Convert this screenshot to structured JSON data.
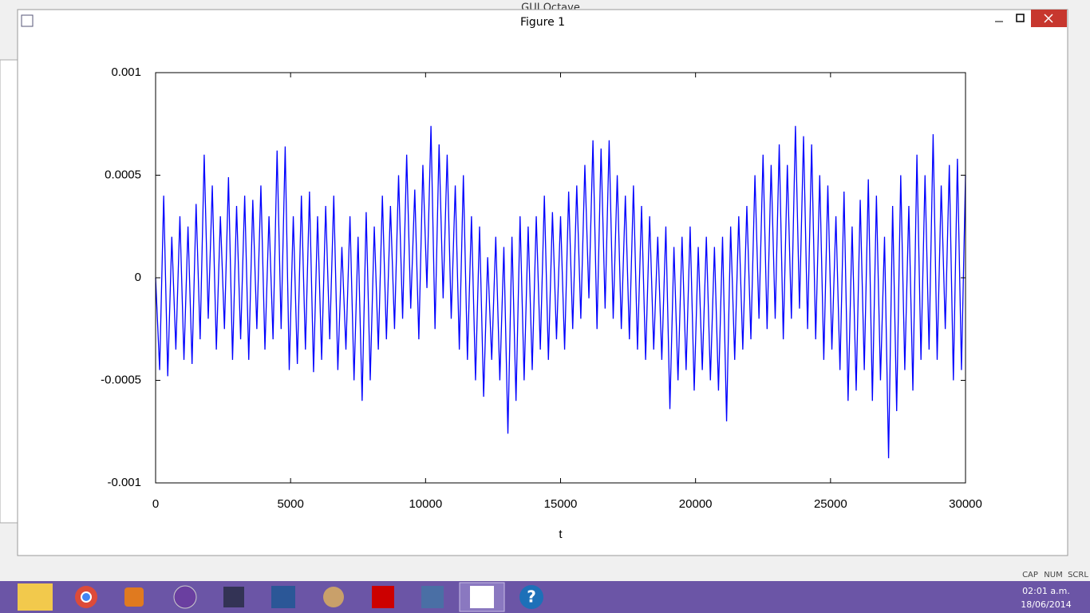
{
  "window": {
    "title": "Figure 1",
    "background_title": "GUI Octave"
  },
  "chart_data": {
    "type": "line",
    "xlabel": "t",
    "x": [
      0,
      150,
      300,
      450,
      600,
      750,
      900,
      1050,
      1200,
      1350,
      1500,
      1650,
      1800,
      1950,
      2100,
      2250,
      2400,
      2550,
      2700,
      2850,
      3000,
      3150,
      3300,
      3450,
      3600,
      3750,
      3900,
      4050,
      4200,
      4350,
      4500,
      4650,
      4800,
      4950,
      5100,
      5250,
      5400,
      5550,
      5700,
      5850,
      6000,
      6150,
      6300,
      6450,
      6600,
      6750,
      6900,
      7050,
      7200,
      7350,
      7500,
      7650,
      7800,
      7950,
      8100,
      8250,
      8400,
      8550,
      8700,
      8850,
      9000,
      9150,
      9300,
      9450,
      9600,
      9750,
      9900,
      10050,
      10200,
      10350,
      10500,
      10650,
      10800,
      10950,
      11100,
      11250,
      11400,
      11550,
      11700,
      11850,
      12000,
      12150,
      12300,
      12450,
      12600,
      12750,
      12900,
      13050,
      13200,
      13350,
      13500,
      13650,
      13800,
      13950,
      14100,
      14250,
      14400,
      14550,
      14700,
      14850,
      15000,
      15150,
      15300,
      15450,
      15600,
      15750,
      15900,
      16050,
      16200,
      16350,
      16500,
      16650,
      16800,
      16950,
      17100,
      17250,
      17400,
      17550,
      17700,
      17850,
      18000,
      18150,
      18300,
      18450,
      18600,
      18750,
      18900,
      19050,
      19200,
      19350,
      19500,
      19650,
      19800,
      19950,
      20100,
      20250,
      20400,
      20550,
      20700,
      20850,
      21000,
      21150,
      21300,
      21450,
      21600,
      21750,
      21900,
      22050,
      22200,
      22350,
      22500,
      22650,
      22800,
      22950,
      23100,
      23250,
      23400,
      23550,
      23700,
      23850,
      24000,
      24150,
      24300,
      24450,
      24600,
      24750,
      24900,
      25050,
      25200,
      25350,
      25500,
      25650,
      25800,
      25950,
      26100,
      26250,
      26400,
      26550,
      26700,
      26850,
      27000,
      27150,
      27300,
      27450,
      27600,
      27750,
      27900,
      28050,
      28200,
      28350,
      28500,
      28650,
      28800,
      28950,
      29100,
      29250,
      29400,
      29550,
      29700,
      29850,
      30000
    ],
    "series": [
      {
        "color": "#0000ff",
        "values": [
          0,
          -0.00045,
          0.0004,
          -0.00048,
          0.0002,
          -0.00035,
          0.0003,
          -0.0004,
          0.00025,
          -0.00042,
          0.00036,
          -0.0003,
          0.0006,
          -0.0002,
          0.00045,
          -0.00035,
          0.0003,
          -0.00025,
          0.00049,
          -0.0004,
          0.00035,
          -0.0003,
          0.0004,
          -0.0004,
          0.00038,
          -0.00025,
          0.00045,
          -0.00035,
          0.0003,
          -0.0003,
          0.00062,
          -0.00025,
          0.00064,
          -0.00045,
          0.0003,
          -0.00042,
          0.0004,
          -0.00035,
          0.00042,
          -0.00046,
          0.0003,
          -0.0004,
          0.00035,
          -0.0003,
          0.0004,
          -0.00045,
          0.00015,
          -0.00035,
          0.0003,
          -0.0005,
          0.0002,
          -0.0006,
          0.00032,
          -0.0005,
          0.00025,
          -0.00035,
          0.0004,
          -0.0003,
          0.00035,
          -0.00025,
          0.0005,
          -0.0002,
          0.0006,
          -0.00015,
          0.00043,
          -0.0003,
          0.00055,
          -5e-05,
          0.00074,
          -0.00025,
          0.00065,
          -0.0001,
          0.0006,
          -0.0002,
          0.00045,
          -0.00035,
          0.0005,
          -0.0004,
          0.0003,
          -0.0005,
          0.00025,
          -0.00058,
          0.0001,
          -0.0004,
          0.0002,
          -0.0005,
          0.00015,
          -0.00076,
          0.0002,
          -0.0006,
          0.0003,
          -0.0005,
          0.00025,
          -0.00045,
          0.0003,
          -0.00035,
          0.0004,
          -0.0004,
          0.00032,
          -0.0003,
          0.0003,
          -0.00035,
          0.00042,
          -0.00025,
          0.00045,
          -0.0002,
          0.00055,
          -0.0001,
          0.00067,
          -0.00025,
          0.00063,
          -0.00015,
          0.00067,
          -0.0002,
          0.0005,
          -0.00025,
          0.0004,
          -0.0003,
          0.00045,
          -0.00035,
          0.00035,
          -0.0004,
          0.0003,
          -0.00035,
          0.0002,
          -0.0004,
          0.00025,
          -0.00064,
          0.00015,
          -0.0005,
          0.0002,
          -0.00045,
          0.00025,
          -0.00055,
          0.00015,
          -0.00045,
          0.0002,
          -0.0005,
          0.00015,
          -0.00055,
          0.0002,
          -0.0007,
          0.00025,
          -0.0004,
          0.0003,
          -0.00035,
          0.00035,
          -0.0003,
          0.0005,
          -0.0002,
          0.0006,
          -0.00025,
          0.00055,
          -0.0002,
          0.00065,
          -0.0003,
          0.00055,
          -0.0002,
          0.00074,
          -0.00015,
          0.00069,
          -0.00025,
          0.00065,
          -0.0003,
          0.0005,
          -0.0004,
          0.00045,
          -0.00035,
          0.0003,
          -0.00045,
          0.00042,
          -0.0006,
          0.00025,
          -0.00055,
          0.00038,
          -0.00045,
          0.00048,
          -0.0006,
          0.0004,
          -0.0005,
          0.0002,
          -0.00088,
          0.00035,
          -0.00065,
          0.0005,
          -0.00045,
          0.00035,
          -0.00055,
          0.0006,
          -0.0004,
          0.0005,
          -0.00035,
          0.0007,
          -0.0004,
          0.00045,
          -0.00025,
          0.00055,
          -0.0005,
          0.00058,
          -0.00045,
          0.0005
        ]
      }
    ],
    "xlim": [
      0,
      30000
    ],
    "ylim": [
      -0.001,
      0.001
    ],
    "xticks": [
      0,
      5000,
      10000,
      15000,
      20000,
      25000,
      30000
    ],
    "yticks": [
      -0.001,
      -0.0005,
      0,
      0.0005,
      0.001
    ]
  },
  "status_bar": {
    "indicators": [
      "CAP",
      "NUM",
      "SCRL"
    ]
  },
  "taskbar": {
    "time": "02:01 a.m.",
    "date": "18/06/2014"
  }
}
